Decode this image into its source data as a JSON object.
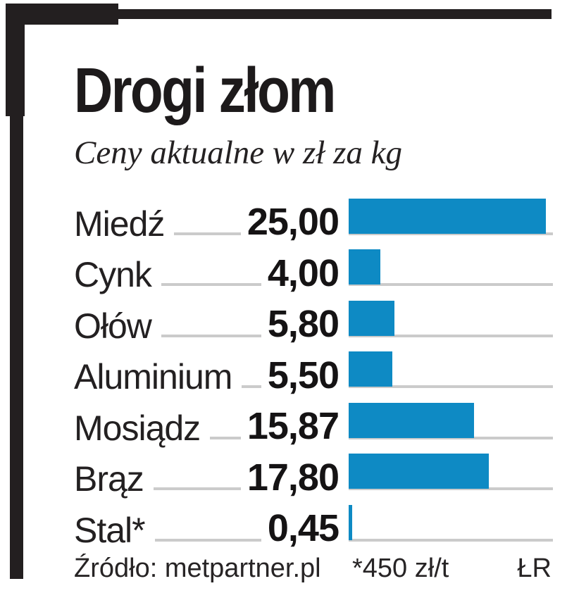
{
  "title": "Drogi złom",
  "subtitle": "Ceny aktualne w zł za kg",
  "colors": {
    "bar": "#0e8ac4",
    "line": "#cbcbcb",
    "frame": "#231f20",
    "text": "#232021"
  },
  "chart_data": {
    "type": "bar",
    "orientation": "horizontal",
    "title": "Drogi złom",
    "subtitle": "Ceny aktualne w zł za kg",
    "unit": "zł za kg",
    "categories": [
      "Miedź",
      "Cynk",
      "Ołów",
      "Aluminium",
      "Mosiądz",
      "Brąz",
      "Stal*"
    ],
    "values": [
      25.0,
      4.0,
      5.8,
      5.5,
      15.87,
      17.8,
      0.45
    ],
    "value_labels": [
      "25,00",
      "4,00",
      "5,80",
      "5,50",
      "15,87",
      "17,80",
      "0,45"
    ],
    "xlim": [
      0,
      25
    ],
    "grid": false,
    "legend": false,
    "source": "Źródło: metpartner.pl",
    "footnote": "*450 zł/t",
    "credit": "ŁR"
  },
  "footer": {
    "source": "Źródło: metpartner.pl",
    "note": "*450 zł/t",
    "credit": "ŁR"
  }
}
